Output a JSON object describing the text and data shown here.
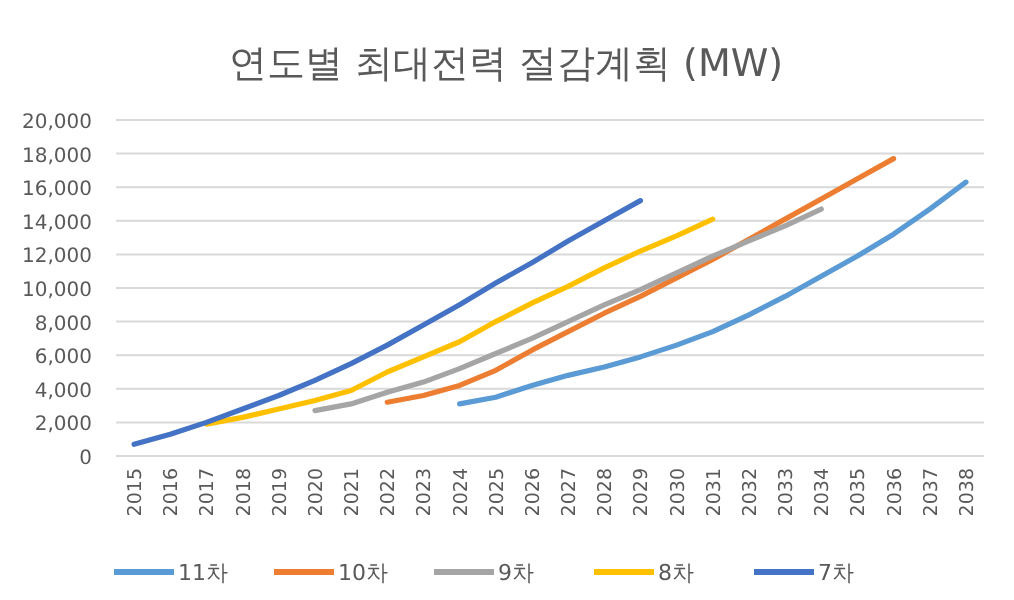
{
  "chart_data": {
    "type": "line",
    "title": "연도별 최대전력 절감계획 (MW)",
    "categories": [
      "2015",
      "2016",
      "2017",
      "2018",
      "2019",
      "2020",
      "2021",
      "2022",
      "2023",
      "2024",
      "2025",
      "2026",
      "2027",
      "2028",
      "2029",
      "2030",
      "2031",
      "2032",
      "2033",
      "2034",
      "2035",
      "2036",
      "2037",
      "2038"
    ],
    "ylim": [
      0,
      20000
    ],
    "yticks": [
      {
        "value": 0,
        "label": "0"
      },
      {
        "value": 2000,
        "label": "2,000"
      },
      {
        "value": 4000,
        "label": "4,000"
      },
      {
        "value": 6000,
        "label": "6,000"
      },
      {
        "value": 8000,
        "label": "8,000"
      },
      {
        "value": 10000,
        "label": "10,000"
      },
      {
        "value": 12000,
        "label": "12,000"
      },
      {
        "value": 14000,
        "label": "14,000"
      },
      {
        "value": 16000,
        "label": "16,000"
      },
      {
        "value": 18000,
        "label": "18,000"
      },
      {
        "value": 20000,
        "label": "20,000"
      }
    ],
    "grid": "y",
    "legend": "bottom",
    "marker": "none",
    "line_style": "solid",
    "series": [
      {
        "name": "11차",
        "color": "#5b9bd5",
        "values": [
          null,
          null,
          null,
          null,
          null,
          null,
          null,
          null,
          null,
          3100,
          3500,
          4200,
          4800,
          5300,
          5900,
          6600,
          7400,
          8400,
          9500,
          10700,
          11900,
          13200,
          14700,
          16300
        ]
      },
      {
        "name": "10차",
        "color": "#ed7d31",
        "values": [
          null,
          null,
          null,
          null,
          null,
          null,
          null,
          3200,
          3600,
          4200,
          5100,
          6300,
          7400,
          8500,
          9500,
          10600,
          11700,
          12900,
          14100,
          15300,
          16500,
          17700,
          null,
          null
        ]
      },
      {
        "name": "9차",
        "color": "#a5a5a5",
        "values": [
          null,
          null,
          null,
          null,
          null,
          2700,
          3100,
          3800,
          4400,
          5200,
          6100,
          7000,
          8000,
          9000,
          9900,
          10900,
          11900,
          12800,
          13700,
          14700,
          null,
          null,
          null,
          null
        ]
      },
      {
        "name": "8차",
        "color": "#ffc000",
        "values": [
          null,
          null,
          1900,
          2300,
          2800,
          3300,
          3900,
          5000,
          5900,
          6800,
          8000,
          9100,
          10100,
          11200,
          12200,
          13100,
          14100,
          null,
          null,
          null,
          null,
          null,
          null,
          null
        ]
      },
      {
        "name": "7차",
        "color": "#4472c4",
        "values": [
          700,
          1300,
          2000,
          2800,
          3600,
          4500,
          5500,
          6600,
          7800,
          9000,
          10300,
          11500,
          12800,
          14000,
          15200,
          null,
          null,
          null,
          null,
          null,
          null,
          null,
          null,
          null
        ]
      }
    ]
  }
}
